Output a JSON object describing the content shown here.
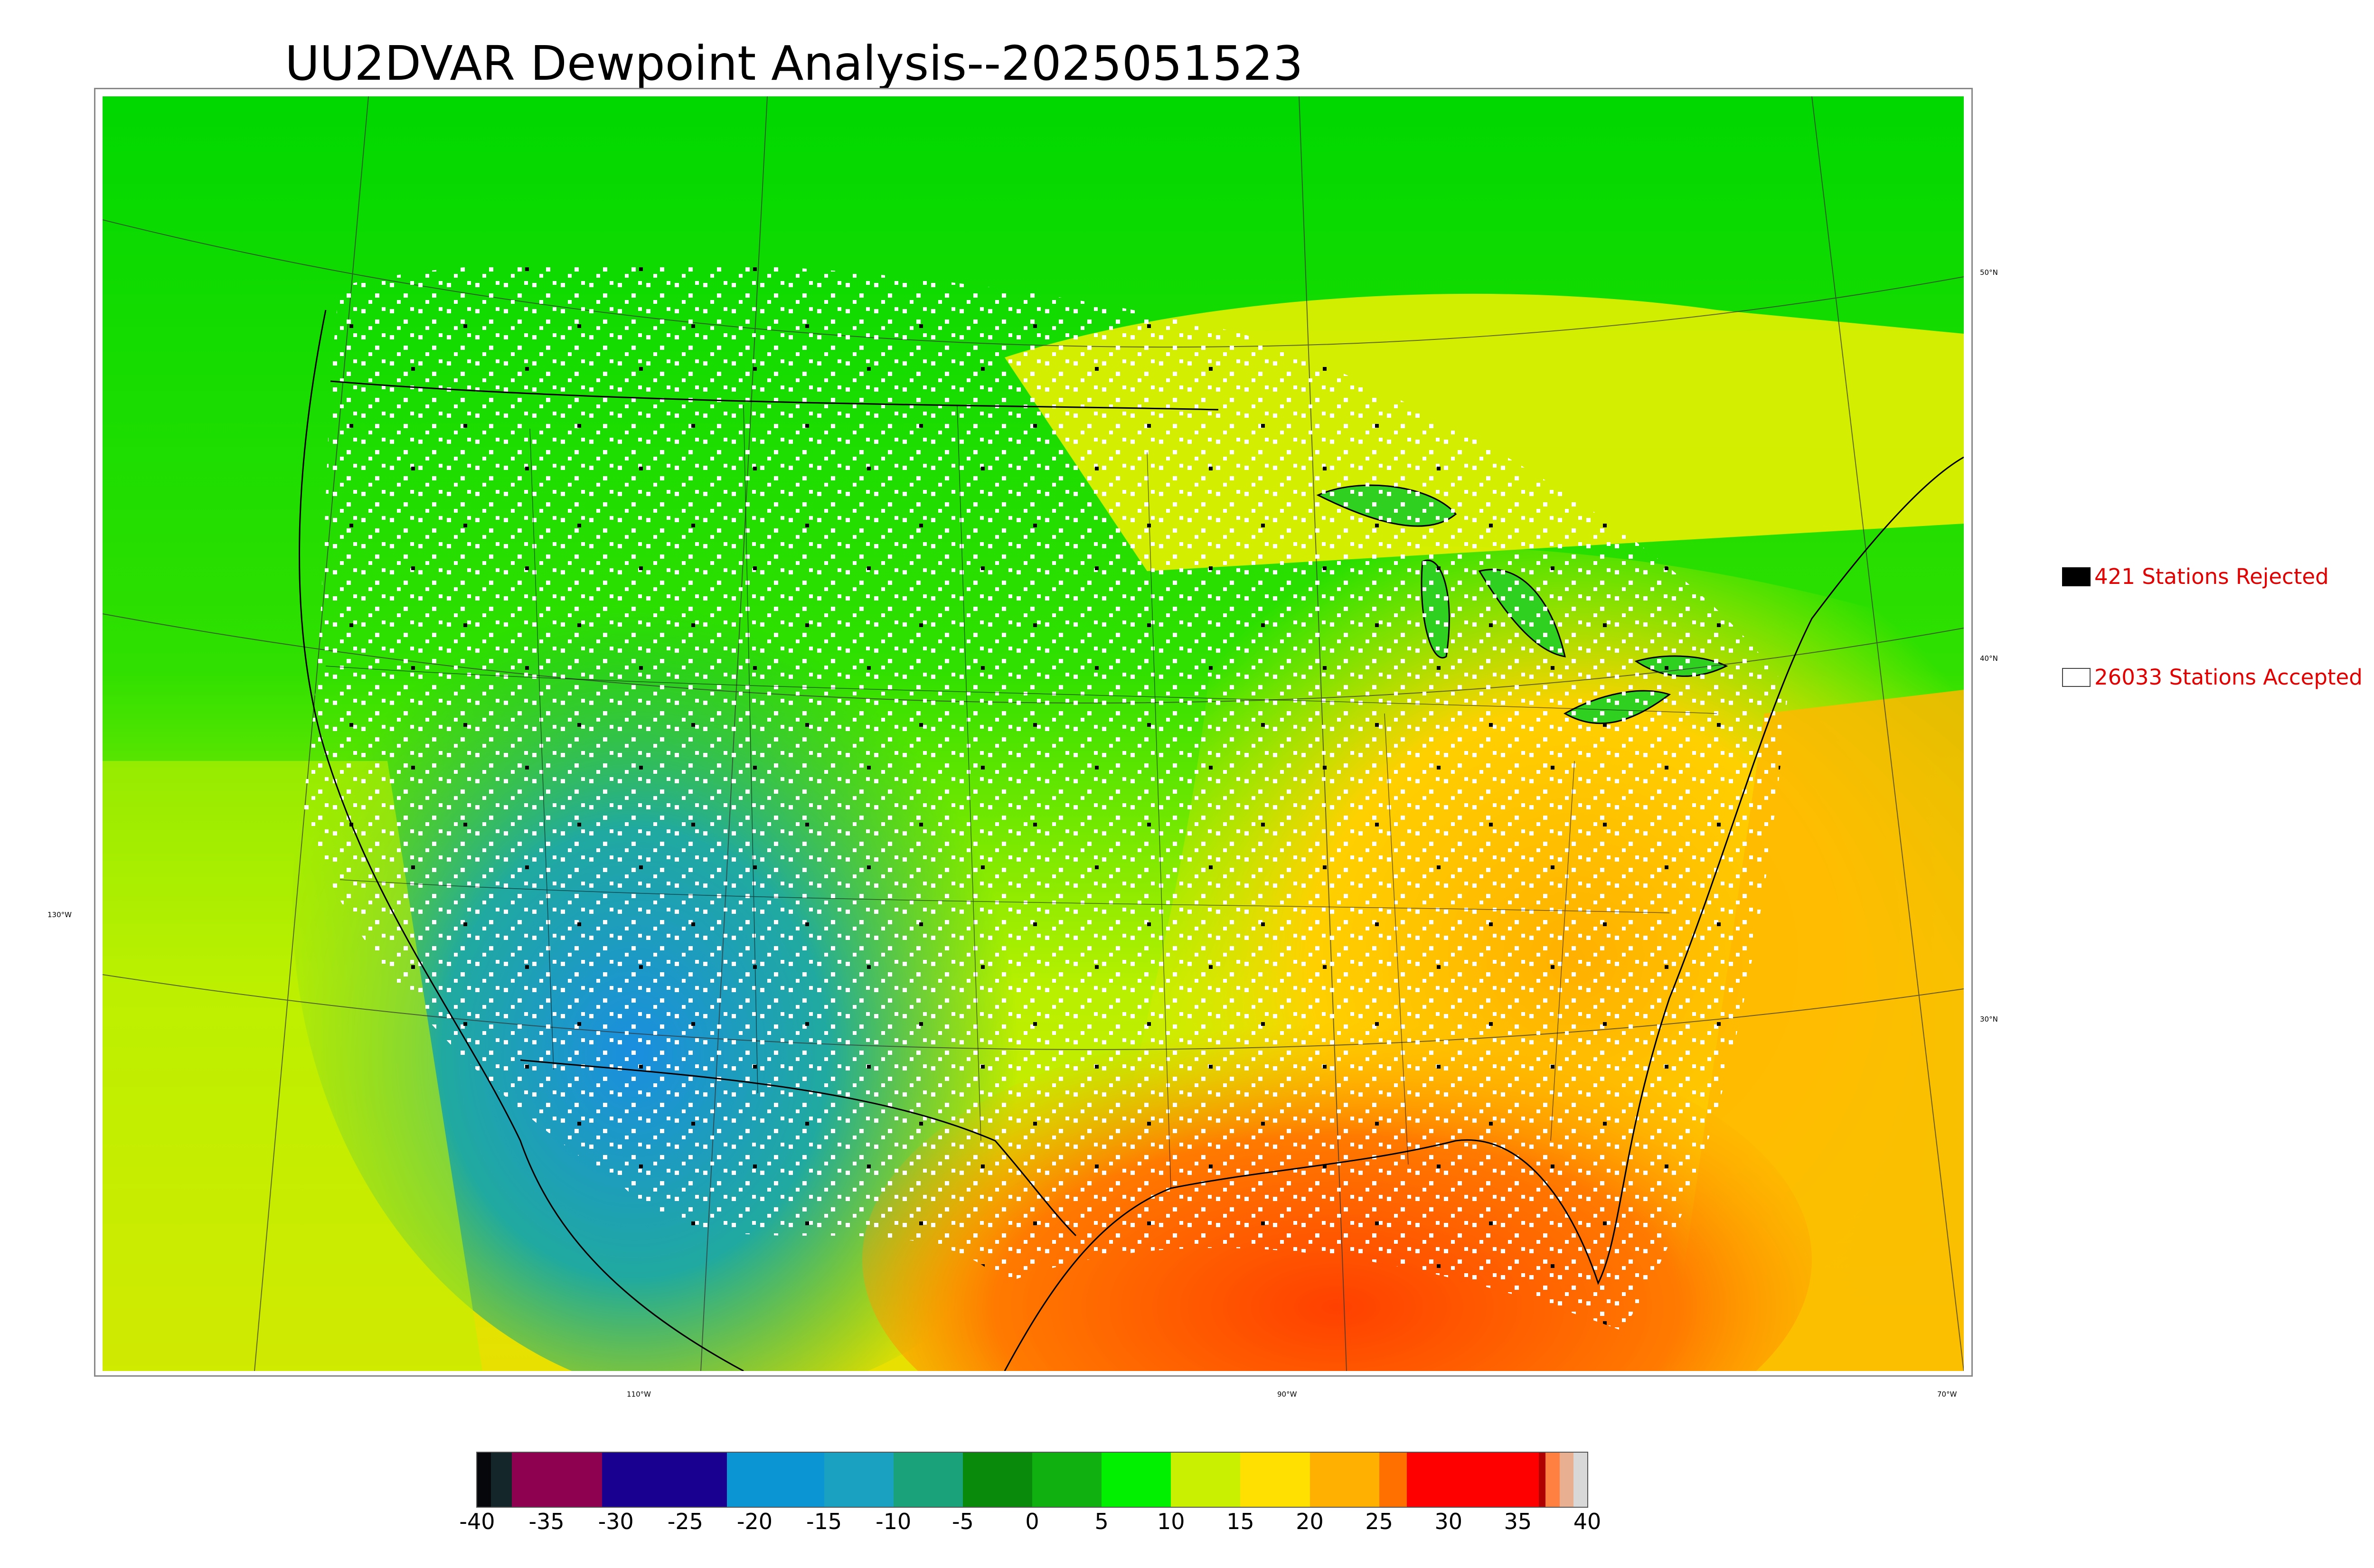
{
  "title": "UU2DVAR Dewpoint Analysis--2025051523",
  "lat_labels": [
    "50°N",
    "40°N",
    "30°N"
  ],
  "lon_labels": [
    "130°W",
    "110°W",
    "90°W",
    "70°W"
  ],
  "legend": {
    "rejected": {
      "label": "421 Stations Rejected",
      "swatch_color": "#000000"
    },
    "accepted": {
      "label": "26033 Stations Accepted",
      "swatch_color": "#ffffff"
    },
    "text_color": "#e00000"
  },
  "colorbar": {
    "min": -40,
    "max": 40,
    "ticks": [
      "-40",
      "-35",
      "-30",
      "-25",
      "-20",
      "-15",
      "-10",
      "-5",
      "0",
      "5",
      "10",
      "15",
      "20",
      "25",
      "30",
      "35",
      "40"
    ],
    "bands": [
      {
        "from": -40,
        "to": -39,
        "color": "#05070a"
      },
      {
        "from": -39,
        "to": -37.5,
        "color": "#14262a"
      },
      {
        "from": -37.5,
        "to": -31,
        "color": "#8e0050"
      },
      {
        "from": -31,
        "to": -22,
        "color": "#1a0090"
      },
      {
        "from": -22,
        "to": -15,
        "color": "#0b95d3"
      },
      {
        "from": -15,
        "to": -10,
        "color": "#1aa0c0"
      },
      {
        "from": -10,
        "to": -5,
        "color": "#1aa27a"
      },
      {
        "from": -5,
        "to": 0,
        "color": "#0a8a0a"
      },
      {
        "from": 0,
        "to": 5,
        "color": "#10b010"
      },
      {
        "from": 5,
        "to": 10,
        "color": "#00f000"
      },
      {
        "from": 10,
        "to": 15,
        "color": "#c8f000"
      },
      {
        "from": 15,
        "to": 20,
        "color": "#ffe000"
      },
      {
        "from": 20,
        "to": 25,
        "color": "#ffb000"
      },
      {
        "from": 25,
        "to": 27,
        "color": "#ff7000"
      },
      {
        "from": 27,
        "to": 36.5,
        "color": "#ff0000"
      },
      {
        "from": 36.5,
        "to": 37,
        "color": "#b00000"
      },
      {
        "from": 37,
        "to": 38,
        "color": "#ff8040"
      },
      {
        "from": 38,
        "to": 39,
        "color": "#e8b090"
      },
      {
        "from": 39,
        "to": 40,
        "color": "#d8d8d8"
      }
    ]
  }
}
